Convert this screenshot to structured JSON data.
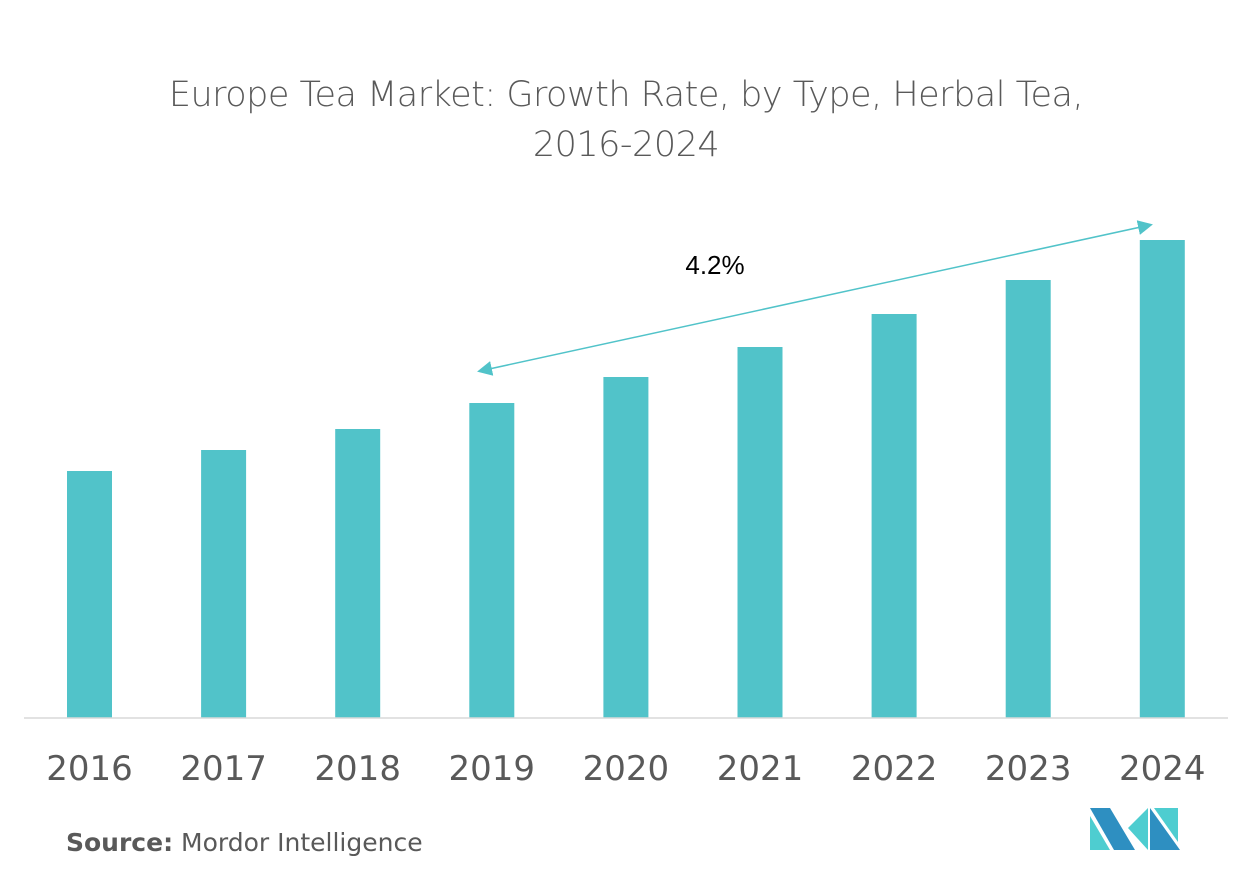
{
  "chart_data": {
    "type": "bar",
    "title": "Europe Tea Market: Growth Rate, by Type, Herbal Tea, 2016-2024",
    "title_lines": [
      "Europe Tea Market: Growth Rate, by Type, Herbal Tea,",
      "2016-2024"
    ],
    "categories": [
      "2016",
      "2017",
      "2018",
      "2019",
      "2020",
      "2021",
      "2022",
      "2023",
      "2024"
    ],
    "values": [
      2.47,
      2.68,
      2.89,
      3.15,
      3.41,
      3.71,
      4.04,
      4.38,
      4.78
    ],
    "ylim": [
      0,
      5
    ],
    "xlabel": "",
    "ylabel": "",
    "grid": false,
    "bar_color": "#51c3c9",
    "annotation": {
      "text": "4.2%",
      "from": "2019",
      "to": "2024",
      "arrow": "double-headed"
    }
  },
  "source": {
    "label": "Source:",
    "text": "Mordor Intelligence"
  },
  "logo": {
    "text": "Mordor Intelligence",
    "colors": [
      "#2e8fc1",
      "#4ecdd0"
    ]
  }
}
